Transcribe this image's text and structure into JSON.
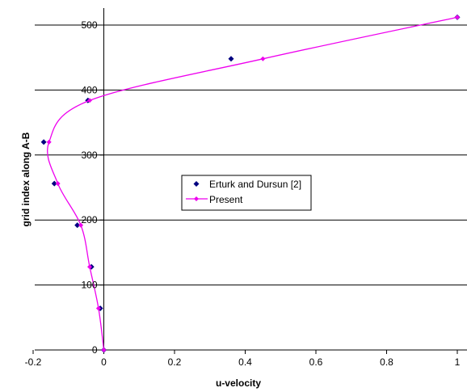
{
  "chart_data": {
    "type": "scatter",
    "xlabel": "u-velocity",
    "ylabel": "grid index along A-B",
    "xlim": [
      -0.2,
      1.0
    ],
    "ylim": [
      0,
      525
    ],
    "xticks": [
      -0.2,
      0,
      0.2,
      0.4,
      0.6,
      0.8,
      1
    ],
    "xtick_labels": [
      "-0.2",
      "0",
      "0.2",
      "0.4",
      "0.6",
      "0.8",
      "1"
    ],
    "yticks": [
      0,
      100,
      200,
      300,
      400,
      500
    ],
    "ytick_labels": [
      "0",
      "100",
      "200",
      "300",
      "400",
      "500"
    ],
    "grid": "horizontal",
    "legend_position": "center",
    "series": [
      {
        "name": "Erturk and Dursun [2]",
        "style": "markers",
        "marker": "diamond",
        "color": "#000080",
        "points": [
          [
            0.0,
            0
          ],
          [
            -0.01,
            64
          ],
          [
            -0.035,
            128
          ],
          [
            -0.075,
            192
          ],
          [
            -0.14,
            256
          ],
          [
            -0.17,
            320
          ],
          [
            -0.045,
            384
          ],
          [
            0.36,
            448
          ],
          [
            1.0,
            512
          ]
        ]
      },
      {
        "name": "Present",
        "style": "line+markers",
        "marker": "diamond",
        "color": "#ee00ee",
        "points": [
          [
            0.0,
            0
          ],
          [
            -0.015,
            64
          ],
          [
            -0.04,
            128
          ],
          [
            -0.065,
            192
          ],
          [
            -0.13,
            256
          ],
          [
            -0.155,
            320
          ],
          [
            -0.04,
            384
          ],
          [
            0.45,
            448
          ],
          [
            1.0,
            512
          ]
        ]
      }
    ]
  }
}
